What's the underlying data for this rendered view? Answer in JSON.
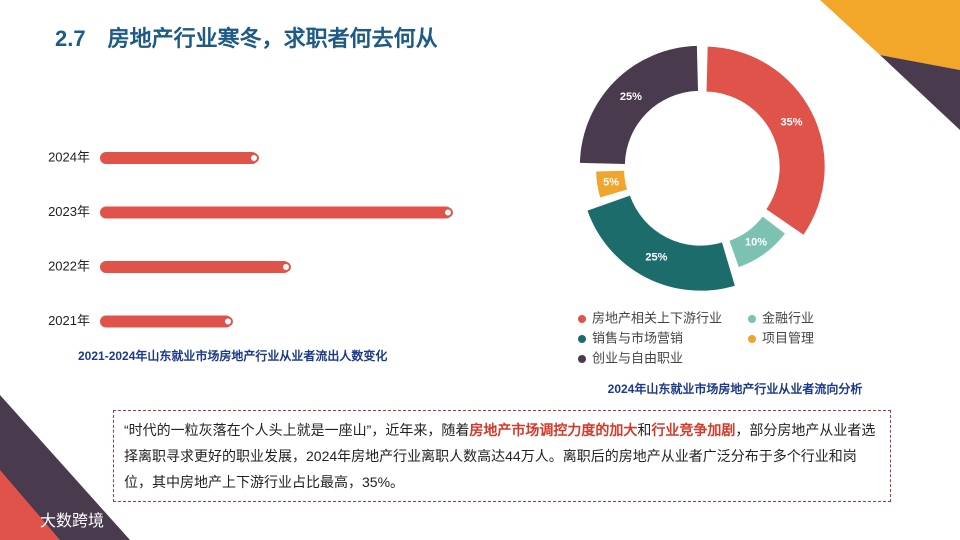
{
  "title": "2.7　房地产行业寒冬，求职者何去何从",
  "chart_data": [
    {
      "type": "hbar",
      "title": "2021-2024年山东就业市场房地产行业从业者流出人数变化",
      "categories": [
        "2024年",
        "2023年",
        "2022年",
        "2021年"
      ],
      "values": [
        158,
        352,
        190,
        132
      ],
      "color": "#e0534a"
    },
    {
      "type": "donut",
      "title": "2024年山东就业市场房地产行业从业者流向分析",
      "categories": [
        "房地产相关上下游行业",
        "金融行业",
        "销售与市场营销",
        "项目管理",
        "创业与自由职业"
      ],
      "values": [
        35,
        10,
        25,
        5,
        25
      ],
      "value_labels": [
        "35%",
        "10%",
        "25%",
        "5%",
        "25%"
      ],
      "colors": [
        "#e0534a",
        "#7cc2b3",
        "#1d6c6c",
        "#f0a52e",
        "#4a3a4e"
      ]
    }
  ],
  "text_box": {
    "segments": [
      {
        "text": "“时代的一粒灰落在个人头上就是一座山”，近年来，随着",
        "emphasis": false
      },
      {
        "text": "房地产市场调控力度的加大",
        "emphasis": true
      },
      {
        "text": "和",
        "emphasis": false
      },
      {
        "text": "行业竞争加剧",
        "emphasis": true
      },
      {
        "text": "，部分房地产从业者选择离职寻求更好的职业发展，2024年房地产行业离职人数高达44万人。离职后的房地产从业者广泛分布于多个行业和岗位，其中房地产上下游行业占比最高，35%。",
        "emphasis": false
      }
    ]
  },
  "logo": "大数跨境"
}
